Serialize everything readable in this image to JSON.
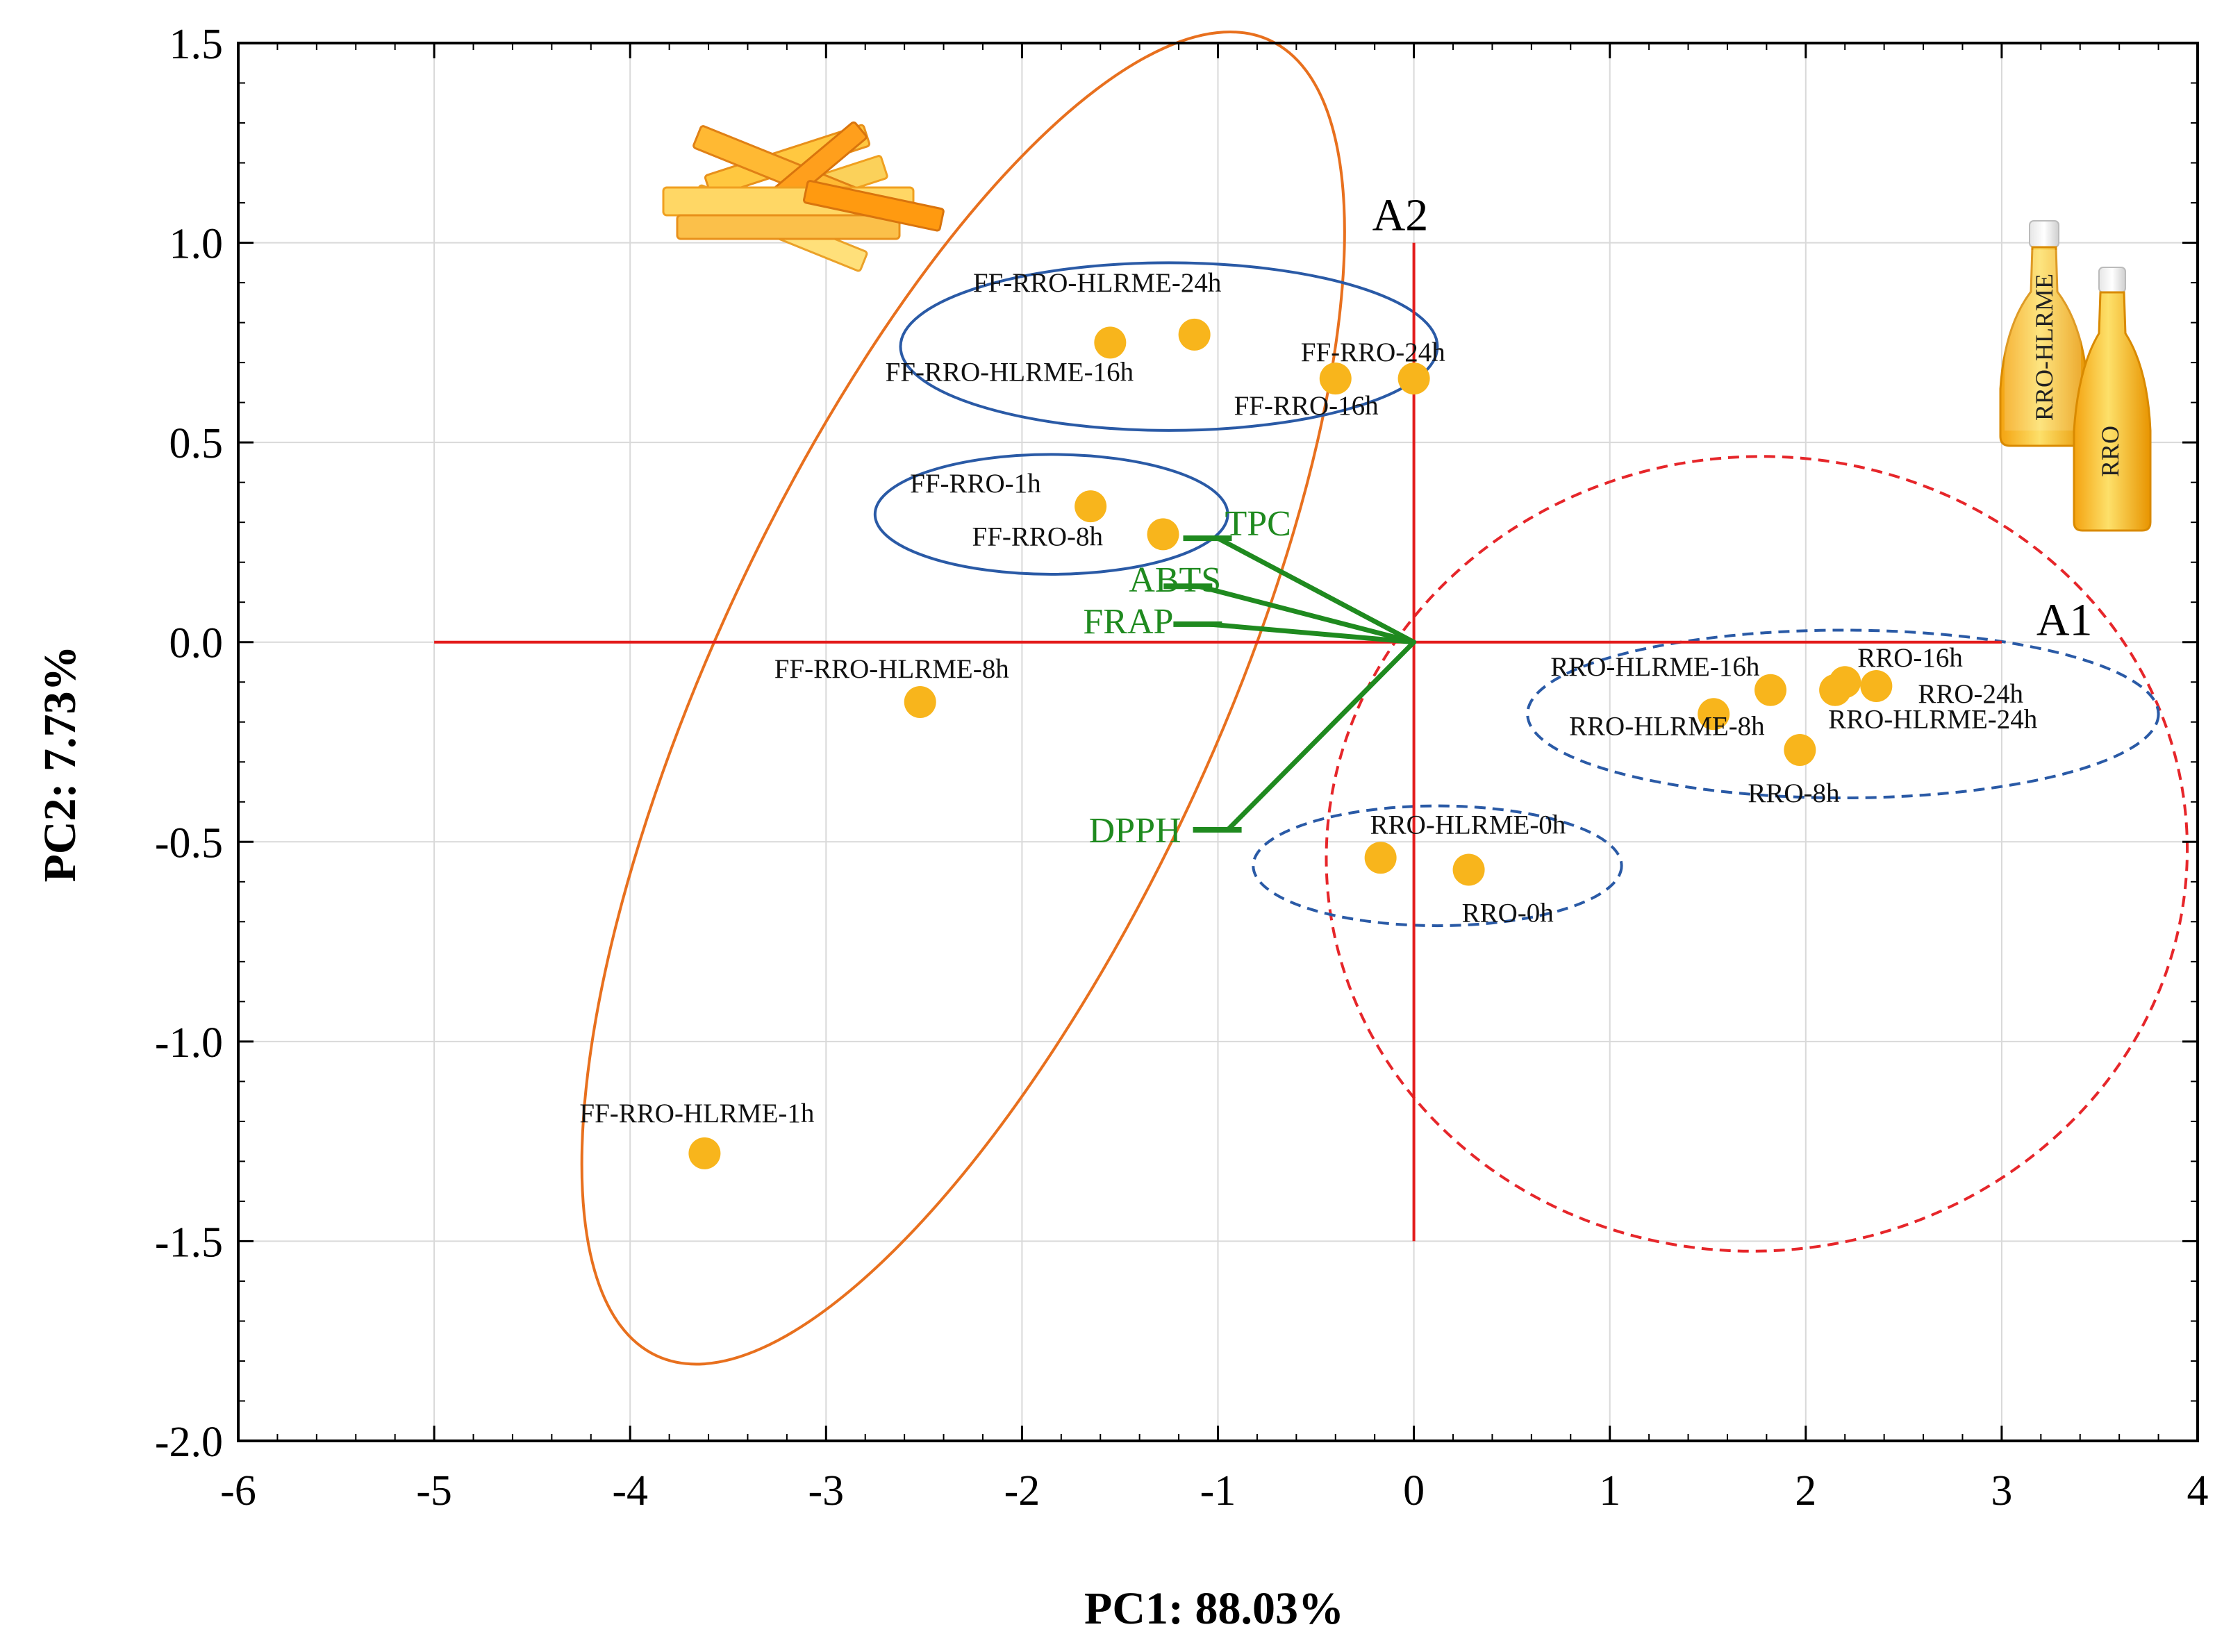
{
  "chart_data": {
    "type": "scatter",
    "subtype": "pca-biplot",
    "xlabel": "PC1: 88.03%",
    "ylabel": "PC2:  7.73%",
    "xlim": [
      -6,
      4
    ],
    "ylim": [
      -2.0,
      1.5
    ],
    "grid": true,
    "x_ticks": [
      "-6",
      "-5",
      "-4",
      "-3",
      "-2",
      "-1",
      "0",
      "1",
      "2",
      "3",
      "4"
    ],
    "y_ticks": [
      "1.5",
      "1.0",
      "0.5",
      "0.0",
      "-0.5",
      "-1.0",
      "-1.5",
      "-2.0"
    ],
    "points": [
      {
        "label": "FF-RRO-HLRME-24h",
        "x": -1.12,
        "y": 0.77
      },
      {
        "label": "FF-RRO-HLRME-16h",
        "x": -1.55,
        "y": 0.75
      },
      {
        "label": "FF-RRO-24h",
        "x": -0.4,
        "y": 0.66
      },
      {
        "label": "FF-RRO-16h",
        "x": 0.0,
        "y": 0.66
      },
      {
        "label": "FF-RRO-1h",
        "x": -1.65,
        "y": 0.34
      },
      {
        "label": "FF-RRO-8h",
        "x": -1.28,
        "y": 0.27
      },
      {
        "label": "FF-RRO-HLRME-8h",
        "x": -2.52,
        "y": -0.15
      },
      {
        "label": "FF-RRO-HLRME-1h",
        "x": -3.62,
        "y": -1.28
      },
      {
        "label": "RRO-HLRME-16h",
        "x": 1.53,
        "y": -0.18
      },
      {
        "label": "RRO-HLRME-8h",
        "x": 1.82,
        "y": -0.12
      },
      {
        "label": "RRO-16h",
        "x": 2.2,
        "y": -0.1
      },
      {
        "label": "RRO-24h",
        "x": 2.36,
        "y": -0.11
      },
      {
        "label": "RRO-HLRME-24h",
        "x": 2.15,
        "y": -0.12
      },
      {
        "label": "RRO-8h",
        "x": 1.97,
        "y": -0.27
      },
      {
        "label": "RRO-HLRME-0h",
        "x": -0.17,
        "y": -0.54
      },
      {
        "label": "RRO-0h",
        "x": 0.28,
        "y": -0.57
      }
    ],
    "loadings": [
      {
        "label": "TPC",
        "x": -1.0,
        "y": 0.26
      },
      {
        "label": "ABTS",
        "x": -1.1,
        "y": 0.14
      },
      {
        "label": "FRAP",
        "x": -1.05,
        "y": 0.045
      },
      {
        "label": "DPPH",
        "x": -0.95,
        "y": -0.47
      }
    ],
    "reference_axes": [
      {
        "label": "A1",
        "from": [
          -5,
          0
        ],
        "to": [
          3,
          0
        ]
      },
      {
        "label": "A2",
        "from": [
          0,
          -1.5
        ],
        "to": [
          0,
          1.0
        ]
      }
    ],
    "groups": [
      {
        "name": "fried food samples",
        "color": "#e8701e",
        "style": "solid",
        "cx": -2.3,
        "cy": -0.14,
        "rx": 4.55,
        "ry": 0.34,
        "angle_deg": 65
      },
      {
        "name": "oil samples",
        "color": "#e6262a",
        "style": "dashed",
        "cx": 1.75,
        "cy": -0.53,
        "rx": 1.85,
        "ry": 0.85,
        "angle_deg": 4
      },
      {
        "name": "FF 16h/24h cluster",
        "color": "#2a5aa6",
        "style": "solid",
        "cx": -1.25,
        "cy": 0.74,
        "rx": 1.37,
        "ry": 0.21,
        "angle_deg": 0
      },
      {
        "name": "FF 1h/8h cluster",
        "color": "#2a5aa6",
        "style": "solid",
        "cx": -1.85,
        "cy": 0.32,
        "rx": 0.9,
        "ry": 0.15,
        "angle_deg": 0
      },
      {
        "name": "oil 8h-24h cluster",
        "color": "#2a5aa6",
        "style": "dashed",
        "cx": 2.19,
        "cy": -0.18,
        "rx": 1.61,
        "ry": 0.21,
        "angle_deg": 0
      },
      {
        "name": "oil 0h cluster",
        "color": "#2a5aa6",
        "style": "dashed",
        "cx": 0.12,
        "cy": -0.56,
        "rx": 0.94,
        "ry": 0.15,
        "angle_deg": 0
      }
    ],
    "colors": {
      "point": "#f8b51c",
      "loading": "#1f8a1f",
      "reference_axes": "#e31c1c",
      "grid": "#d9d9d9"
    }
  },
  "illustrations": {
    "fries": "french-fries-illustration",
    "bottle_left_label": "RRO-HLRME",
    "bottle_right_label": "RRO"
  }
}
